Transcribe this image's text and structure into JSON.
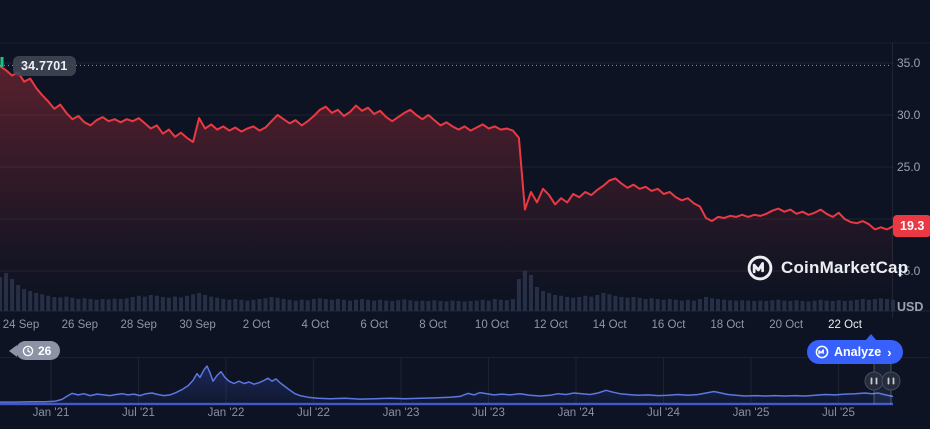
{
  "chart": {
    "open_price_label": "34.7701",
    "current_price": "19.3",
    "currency": "USD",
    "y_axis_labels": [
      35.0,
      30.0,
      25.0,
      15.0
    ],
    "gridline_values": [
      35,
      30,
      25,
      20,
      15
    ],
    "x_axis_labels": [
      "24 Sep",
      "26 Sep",
      "28 Sep",
      "30 Sep",
      "2 Oct",
      "4 Oct",
      "6 Oct",
      "8 Oct",
      "10 Oct",
      "12 Oct",
      "14 Oct",
      "16 Oct",
      "18 Oct",
      "20 Oct",
      "22 Oct"
    ],
    "navigator_labels": [
      "Jan '21",
      "Jul '21",
      "Jan '22",
      "Jul '22",
      "Jan '23",
      "Jul '23",
      "Jan '24",
      "Jul '24",
      "Jan '25",
      "Jul '25"
    ],
    "toolbar": {
      "annotation_count": "26",
      "analyze_label": "Analyze",
      "analyze_chevron": "›"
    },
    "watermark_text": "CoinMarketCap",
    "colors": {
      "background": "#0d1322",
      "price_line": "#ea3943",
      "price_badge": "#ea3943",
      "open_marker_green": "#16c784",
      "accent_blue": "#3861fb",
      "navigator_line": "#5b77e0",
      "volume_bar": "#273049",
      "grid": "rgba(255,255,255,0.07)",
      "label_gray": "#8f96a9"
    }
  },
  "chart_data": {
    "type": "line",
    "title": "",
    "ylabel": "USD",
    "open_price": 34.7701,
    "last_price": 19.3,
    "y_ticks": [
      15,
      20,
      25,
      30,
      35
    ],
    "x_tick_dates": [
      "24 Sep",
      "26 Sep",
      "28 Sep",
      "30 Sep",
      "2 Oct",
      "4 Oct",
      "6 Oct",
      "8 Oct",
      "10 Oct",
      "12 Oct",
      "14 Oct",
      "16 Oct",
      "18 Oct",
      "20 Oct",
      "22 Oct"
    ],
    "price_series_usd": [
      34.7,
      34.3,
      33.8,
      34.1,
      33.2,
      33.5,
      32.6,
      31.9,
      31.3,
      30.6,
      31.0,
      30.2,
      29.6,
      29.9,
      29.3,
      29.0,
      29.5,
      29.8,
      29.4,
      29.6,
      29.3,
      29.6,
      29.4,
      29.7,
      29.2,
      28.7,
      29.0,
      28.2,
      28.6,
      27.9,
      28.3,
      27.8,
      27.4,
      29.7,
      28.7,
      29.1,
      28.6,
      28.9,
      28.5,
      28.8,
      28.4,
      28.7,
      28.9,
      28.5,
      28.8,
      29.4,
      30.0,
      29.6,
      29.2,
      29.5,
      29.0,
      29.4,
      29.9,
      30.5,
      30.8,
      30.2,
      30.5,
      29.9,
      30.3,
      30.9,
      30.4,
      30.7,
      30.1,
      30.4,
      29.8,
      29.4,
      29.8,
      30.2,
      30.5,
      30.0,
      29.6,
      30.0,
      29.5,
      29.0,
      29.3,
      28.9,
      28.6,
      28.9,
      28.5,
      28.8,
      29.1,
      28.7,
      28.9,
      28.6,
      28.7,
      28.5,
      27.8,
      20.9,
      22.6,
      21.6,
      22.9,
      22.3,
      21.4,
      22.0,
      21.6,
      22.4,
      22.1,
      22.6,
      22.3,
      22.8,
      23.2,
      23.7,
      23.9,
      23.4,
      23.0,
      23.3,
      22.9,
      23.1,
      22.7,
      22.9,
      22.4,
      22.6,
      22.1,
      21.8,
      22.0,
      21.5,
      21.2,
      20.1,
      19.8,
      20.2,
      20.1,
      20.3,
      20.2,
      20.4,
      20.2,
      20.4,
      20.3,
      20.5,
      20.8,
      21.0,
      20.7,
      20.9,
      20.5,
      20.7,
      20.4,
      20.6,
      20.9,
      20.5,
      20.2,
      20.6,
      20.0,
      19.7,
      19.6,
      19.8,
      19.5,
      19.0,
      19.2,
      19.0,
      19.3
    ],
    "volume_relative": [
      0.85,
      0.95,
      0.8,
      0.65,
      0.55,
      0.5,
      0.45,
      0.42,
      0.38,
      0.35,
      0.34,
      0.36,
      0.33,
      0.3,
      0.32,
      0.3,
      0.28,
      0.3,
      0.29,
      0.31,
      0.3,
      0.32,
      0.35,
      0.38,
      0.36,
      0.4,
      0.38,
      0.35,
      0.33,
      0.36,
      0.34,
      0.38,
      0.42,
      0.45,
      0.4,
      0.36,
      0.33,
      0.3,
      0.28,
      0.3,
      0.28,
      0.26,
      0.28,
      0.3,
      0.32,
      0.35,
      0.33,
      0.3,
      0.28,
      0.26,
      0.28,
      0.27,
      0.3,
      0.32,
      0.3,
      0.28,
      0.3,
      0.28,
      0.26,
      0.28,
      0.3,
      0.28,
      0.26,
      0.28,
      0.26,
      0.25,
      0.27,
      0.29,
      0.27,
      0.25,
      0.26,
      0.25,
      0.27,
      0.25,
      0.24,
      0.26,
      0.25,
      0.24,
      0.25,
      0.26,
      0.28,
      0.26,
      0.3,
      0.28,
      0.27,
      0.3,
      0.8,
      1.0,
      0.9,
      0.6,
      0.5,
      0.45,
      0.4,
      0.38,
      0.35,
      0.33,
      0.35,
      0.38,
      0.36,
      0.4,
      0.45,
      0.42,
      0.38,
      0.35,
      0.33,
      0.35,
      0.33,
      0.3,
      0.32,
      0.3,
      0.28,
      0.3,
      0.28,
      0.26,
      0.28,
      0.26,
      0.3,
      0.35,
      0.32,
      0.3,
      0.28,
      0.27,
      0.26,
      0.27,
      0.26,
      0.25,
      0.26,
      0.25,
      0.27,
      0.28,
      0.26,
      0.25,
      0.27,
      0.25,
      0.24,
      0.26,
      0.28,
      0.26,
      0.25,
      0.27,
      0.25,
      0.26,
      0.28,
      0.3,
      0.28,
      0.3,
      0.32,
      0.3,
      0.28
    ],
    "navigator_series": [
      [
        0,
        0.05
      ],
      [
        15,
        0.05
      ],
      [
        30,
        0.06
      ],
      [
        45,
        0.06
      ],
      [
        55,
        0.07
      ],
      [
        62,
        0.12
      ],
      [
        68,
        0.22
      ],
      [
        72,
        0.28
      ],
      [
        78,
        0.24
      ],
      [
        84,
        0.27
      ],
      [
        90,
        0.22
      ],
      [
        97,
        0.26
      ],
      [
        104,
        0.24
      ],
      [
        110,
        0.22
      ],
      [
        116,
        0.25
      ],
      [
        122,
        0.27
      ],
      [
        128,
        0.24
      ],
      [
        134,
        0.26
      ],
      [
        140,
        0.22
      ],
      [
        146,
        0.27
      ],
      [
        152,
        0.29
      ],
      [
        158,
        0.25
      ],
      [
        164,
        0.22
      ],
      [
        170,
        0.24
      ],
      [
        176,
        0.3
      ],
      [
        182,
        0.38
      ],
      [
        188,
        0.48
      ],
      [
        193,
        0.62
      ],
      [
        197,
        0.8
      ],
      [
        200,
        0.7
      ],
      [
        204,
        0.9
      ],
      [
        207,
        1.0
      ],
      [
        210,
        0.82
      ],
      [
        213,
        0.6
      ],
      [
        217,
        0.75
      ],
      [
        221,
        0.85
      ],
      [
        225,
        0.7
      ],
      [
        229,
        0.6
      ],
      [
        234,
        0.54
      ],
      [
        239,
        0.6
      ],
      [
        244,
        0.54
      ],
      [
        249,
        0.58
      ],
      [
        254,
        0.52
      ],
      [
        259,
        0.56
      ],
      [
        264,
        0.62
      ],
      [
        268,
        0.68
      ],
      [
        272,
        0.6
      ],
      [
        276,
        0.66
      ],
      [
        280,
        0.56
      ],
      [
        285,
        0.46
      ],
      [
        290,
        0.36
      ],
      [
        295,
        0.27
      ],
      [
        300,
        0.22
      ],
      [
        308,
        0.18
      ],
      [
        318,
        0.15
      ],
      [
        330,
        0.14
      ],
      [
        345,
        0.15
      ],
      [
        360,
        0.13
      ],
      [
        375,
        0.14
      ],
      [
        390,
        0.15
      ],
      [
        405,
        0.14
      ],
      [
        420,
        0.15
      ],
      [
        435,
        0.16
      ],
      [
        450,
        0.18
      ],
      [
        460,
        0.2
      ],
      [
        468,
        0.28
      ],
      [
        474,
        0.24
      ],
      [
        480,
        0.3
      ],
      [
        487,
        0.27
      ],
      [
        494,
        0.24
      ],
      [
        502,
        0.26
      ],
      [
        510,
        0.24
      ],
      [
        520,
        0.27
      ],
      [
        530,
        0.23
      ],
      [
        540,
        0.21
      ],
      [
        550,
        0.23
      ],
      [
        558,
        0.27
      ],
      [
        566,
        0.25
      ],
      [
        574,
        0.29
      ],
      [
        582,
        0.27
      ],
      [
        590,
        0.25
      ],
      [
        598,
        0.29
      ],
      [
        606,
        0.36
      ],
      [
        613,
        0.31
      ],
      [
        620,
        0.27
      ],
      [
        628,
        0.25
      ],
      [
        638,
        0.23
      ],
      [
        648,
        0.24
      ],
      [
        658,
        0.22
      ],
      [
        668,
        0.23
      ],
      [
        678,
        0.25
      ],
      [
        688,
        0.23
      ],
      [
        698,
        0.25
      ],
      [
        706,
        0.29
      ],
      [
        714,
        0.33
      ],
      [
        721,
        0.29
      ],
      [
        728,
        0.25
      ],
      [
        736,
        0.23
      ],
      [
        745,
        0.21
      ],
      [
        755,
        0.22
      ],
      [
        765,
        0.21
      ],
      [
        775,
        0.22
      ],
      [
        785,
        0.21
      ],
      [
        795,
        0.22
      ],
      [
        805,
        0.21
      ],
      [
        815,
        0.23
      ],
      [
        825,
        0.25
      ],
      [
        835,
        0.24
      ],
      [
        845,
        0.26
      ],
      [
        855,
        0.27
      ],
      [
        865,
        0.29
      ],
      [
        872,
        0.27
      ],
      [
        878,
        0.29
      ],
      [
        884,
        0.25
      ],
      [
        889,
        0.22
      ],
      [
        893,
        0.2
      ]
    ],
    "navigator_x_labels": [
      "Jan '21",
      "Jul '21",
      "Jan '22",
      "Jul '22",
      "Jan '23",
      "Jul '23",
      "Jan '24",
      "Jul '24",
      "Jan '25",
      "Jul '25"
    ],
    "legend_position": "none",
    "grid": true
  }
}
